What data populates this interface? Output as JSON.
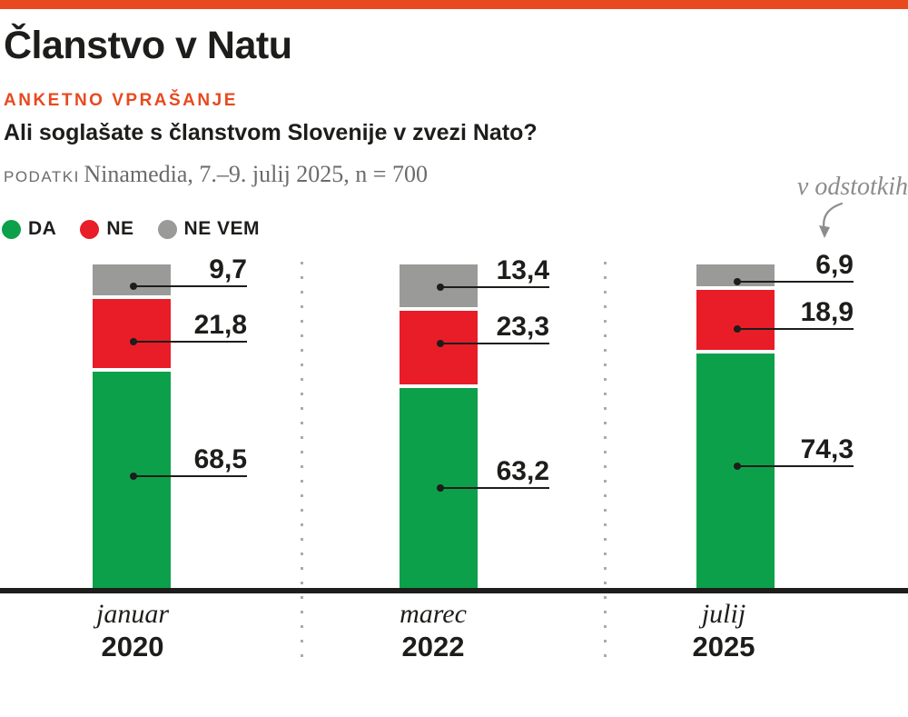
{
  "header": {
    "title": "Članstvo v Natu",
    "kicker": "ANKETNO VPRAŠANJE",
    "question": "Ali soglašate s članstvom Slovenije v zvezi Nato?",
    "source_label": "PODATKI",
    "source_text": "Ninamedia, 7.–9. julij 2025, n = 700"
  },
  "legend": {
    "items": [
      {
        "label": "DA",
        "color": "#0da04a"
      },
      {
        "label": "NE",
        "color": "#e81d28"
      },
      {
        "label": "NE VEM",
        "color": "#9a9a99"
      }
    ]
  },
  "annotation": {
    "unit_note": "v odstotkih"
  },
  "colors": {
    "accent_orange": "#e8491f",
    "da_green": "#0da04a",
    "ne_red": "#e81d28",
    "nevem_gray": "#9a9a99",
    "text_dark": "#1d1d1b",
    "text_gray": "#6b6b6b"
  },
  "chart_data": {
    "type": "bar",
    "stacked": true,
    "unit": "percent",
    "title": "Članstvo v Natu",
    "categories": [
      "januar 2020",
      "marec 2022",
      "julij 2025"
    ],
    "series": [
      {
        "name": "DA",
        "color": "#0da04a",
        "values": [
          68.5,
          63.2,
          74.3
        ]
      },
      {
        "name": "NE",
        "color": "#e81d28",
        "values": [
          21.8,
          23.3,
          18.9
        ]
      },
      {
        "name": "NE VEM",
        "color": "#9a9a99",
        "values": [
          9.7,
          13.4,
          6.9
        ]
      }
    ],
    "ylim": [
      0,
      100
    ],
    "grid": false,
    "legend_position": "top-left",
    "groups": [
      {
        "month": "januar",
        "year": "2020",
        "labels": {
          "da": "68,5",
          "ne": "21,8",
          "nevem": "9,7"
        }
      },
      {
        "month": "marec",
        "year": "2022",
        "labels": {
          "da": "63,2",
          "ne": "23,3",
          "nevem": "13,4"
        }
      },
      {
        "month": "julij",
        "year": "2025",
        "labels": {
          "da": "74,3",
          "ne": "18,9",
          "nevem": "6,9"
        }
      }
    ]
  }
}
